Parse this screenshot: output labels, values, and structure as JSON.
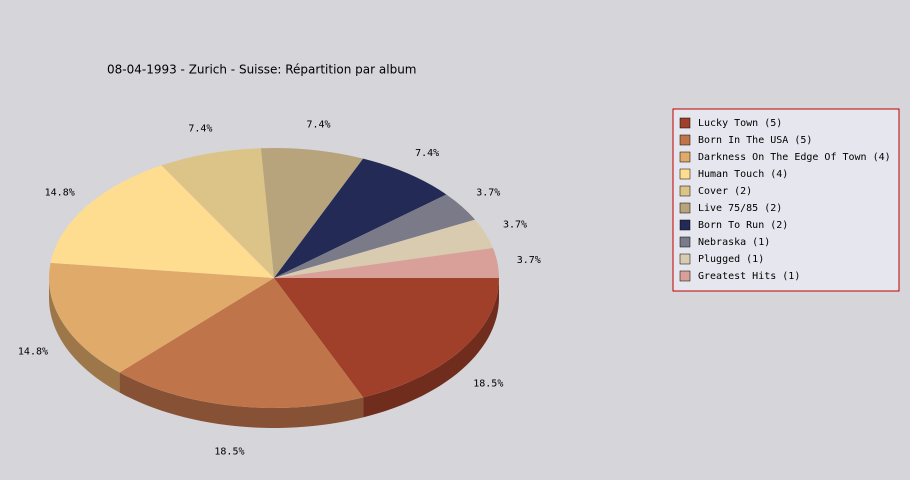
{
  "chart_data": {
    "type": "pie3d",
    "title": "08-04-1993 - Zurich - Suisse:  Répartition par album",
    "categories": [
      "Lucky Town (5)",
      "Born In The USA (5)",
      "Darkness On The Edge Of Town (4)",
      "Human Touch (4)",
      "Cover (2)",
      "Live 75/85 (2)",
      "Born To Run (2)",
      "Nebraska (1)",
      "Plugged (1)",
      "Greatest Hits (1)"
    ],
    "values": [
      18.5,
      18.5,
      14.8,
      14.8,
      7.4,
      7.4,
      7.4,
      3.7,
      3.7,
      3.7
    ],
    "value_labels": [
      "18.5%",
      "18.5%",
      "14.8%",
      "14.8%",
      "7.4%",
      "7.4%",
      "7.4%",
      "3.7%",
      "3.7%",
      "3.7%"
    ],
    "colors": [
      "#a0402a",
      "#c0744a",
      "#e0aa6a",
      "#fedd90",
      "#dcc488",
      "#b8a47c",
      "#222a55",
      "#7a7a88",
      "#d8cbb0",
      "#d8a098"
    ],
    "legend": "right"
  }
}
